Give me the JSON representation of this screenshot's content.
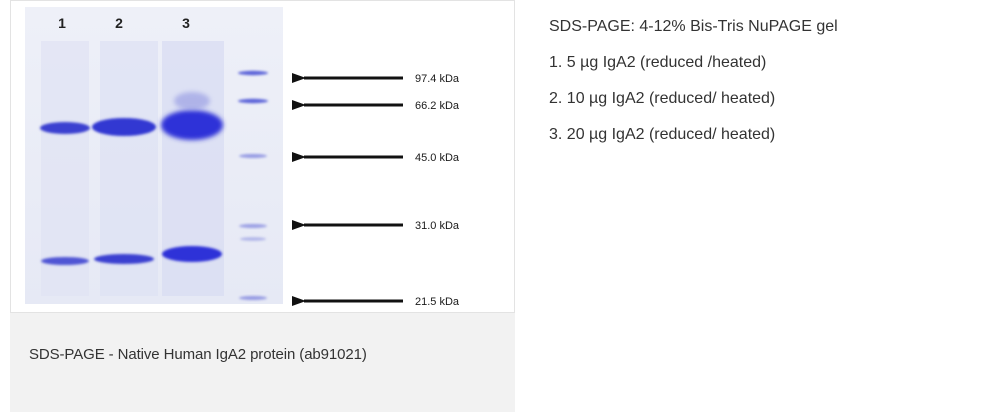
{
  "figure": {
    "lane_numbers": [
      "1",
      "2",
      "3"
    ],
    "mw_markers": [
      "97.4 kDa",
      "66.2 kDa",
      "45.0 kDa",
      "31.0 kDa",
      "21.5 kDa"
    ],
    "caption": "SDS-PAGE - Native Human IgA2 protein (ab91021)",
    "band_color": "#3a3fd0",
    "ladder_color": "#5a62d8"
  },
  "description": {
    "title": "SDS-PAGE: 4-12% Bis-Tris NuPAGE gel",
    "lanes": [
      "1. 5 µg IgA2 (reduced /heated)",
      "2. 10 µg IgA2 (reduced/ heated)",
      "3. 20 µg IgA2 (reduced/ heated)"
    ]
  }
}
